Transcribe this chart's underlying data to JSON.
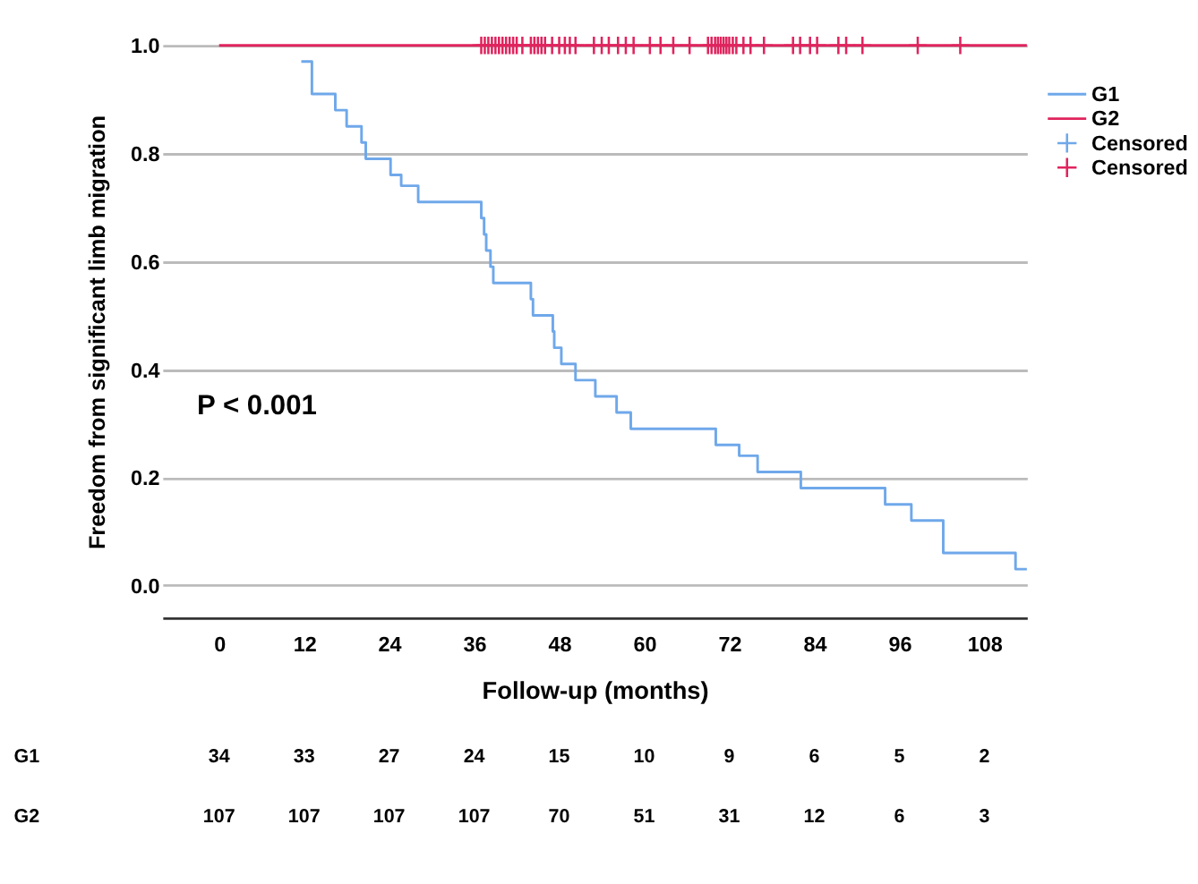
{
  "chart_data": {
    "type": "step",
    "ylabel": "Freedom from significant limb migration",
    "xlabel": "Follow-up (months)",
    "xlim": [
      -8,
      114
    ],
    "ylim": [
      -0.06,
      1.0
    ],
    "xticks": [
      0,
      12,
      24,
      36,
      48,
      60,
      72,
      84,
      96,
      108
    ],
    "yticks": [
      {
        "value": 0,
        "label": "0.0"
      },
      {
        "value": 0.2,
        "label": "0.2"
      },
      {
        "value": 0.4,
        "label": "0.4"
      },
      {
        "value": 0.6,
        "label": "0.6"
      },
      {
        "value": 0.8,
        "label": "0.8"
      },
      {
        "value": 1.0,
        "label": "1.0"
      }
    ],
    "grid": "y",
    "legend": "right",
    "line_style": "solid",
    "series": [
      {
        "name": "G1",
        "color": "#6fa8ea",
        "x": [
          11.6,
          13.1,
          16.4,
          18,
          20.1,
          20.7,
          24.2,
          25.7,
          28.1,
          37,
          37.4,
          37.7,
          38.3,
          38.7,
          44,
          44.3,
          47.1,
          47.3,
          48.3,
          50.3,
          53.1,
          56.1,
          58.1,
          70.1,
          73.4,
          76,
          82.1,
          94,
          97.7,
          102.2,
          112.4,
          114
        ],
        "values": [
          0.97,
          0.91,
          0.88,
          0.85,
          0.82,
          0.79,
          0.76,
          0.74,
          0.71,
          0.68,
          0.65,
          0.62,
          0.59,
          0.56,
          0.53,
          0.5,
          0.47,
          0.44,
          0.41,
          0.38,
          0.35,
          0.32,
          0.29,
          0.26,
          0.24,
          0.21,
          0.18,
          0.15,
          0.12,
          0.06,
          0.03,
          0.03
        ]
      },
      {
        "name": "G2",
        "color": "#e0245e",
        "x": [
          0,
          114
        ],
        "values": [
          1,
          1
        ]
      },
      {
        "name": "Censored",
        "type": "scatter",
        "marker": "cross",
        "color": "#6fa8ea"
      },
      {
        "name": "Censored",
        "type": "scatter",
        "marker": "cross",
        "color": "#e0245e",
        "x": [
          37,
          37.5,
          38,
          38.5,
          39,
          39.5,
          40,
          40.5,
          41,
          41.5,
          42,
          42.8,
          44,
          44.5,
          45,
          45.5,
          46,
          47,
          48,
          48.8,
          49.5,
          50.3,
          52.9,
          54,
          55,
          56.3,
          57.4,
          58.5,
          60.8,
          62.3,
          64.1,
          66.4,
          69,
          69.5,
          70,
          70.4,
          70.8,
          71.2,
          71.6,
          72,
          72.5,
          73,
          74,
          75,
          76.9,
          81,
          82,
          83.4,
          84.4,
          87.4,
          88.5,
          90.8,
          98.6,
          104.6
        ],
        "values": [
          1,
          1,
          1,
          1,
          1,
          1,
          1,
          1,
          1,
          1,
          1,
          1,
          1,
          1,
          1,
          1,
          1,
          1,
          1,
          1,
          1,
          1,
          1,
          1,
          1,
          1,
          1,
          1,
          1,
          1,
          1,
          1,
          1,
          1,
          1,
          1,
          1,
          1,
          1,
          1,
          1,
          1,
          1,
          1,
          1,
          1,
          1,
          1,
          1,
          1,
          1,
          1,
          1,
          1
        ]
      }
    ],
    "annotations": [
      "P < 0.001",
      "G1",
      "34",
      "33",
      "27",
      "24",
      "15",
      "10",
      "9",
      "6",
      "5",
      "2",
      "G2",
      "107",
      "107",
      "107",
      "107",
      "70",
      "51",
      "31",
      "12",
      "6",
      "3"
    ]
  }
}
